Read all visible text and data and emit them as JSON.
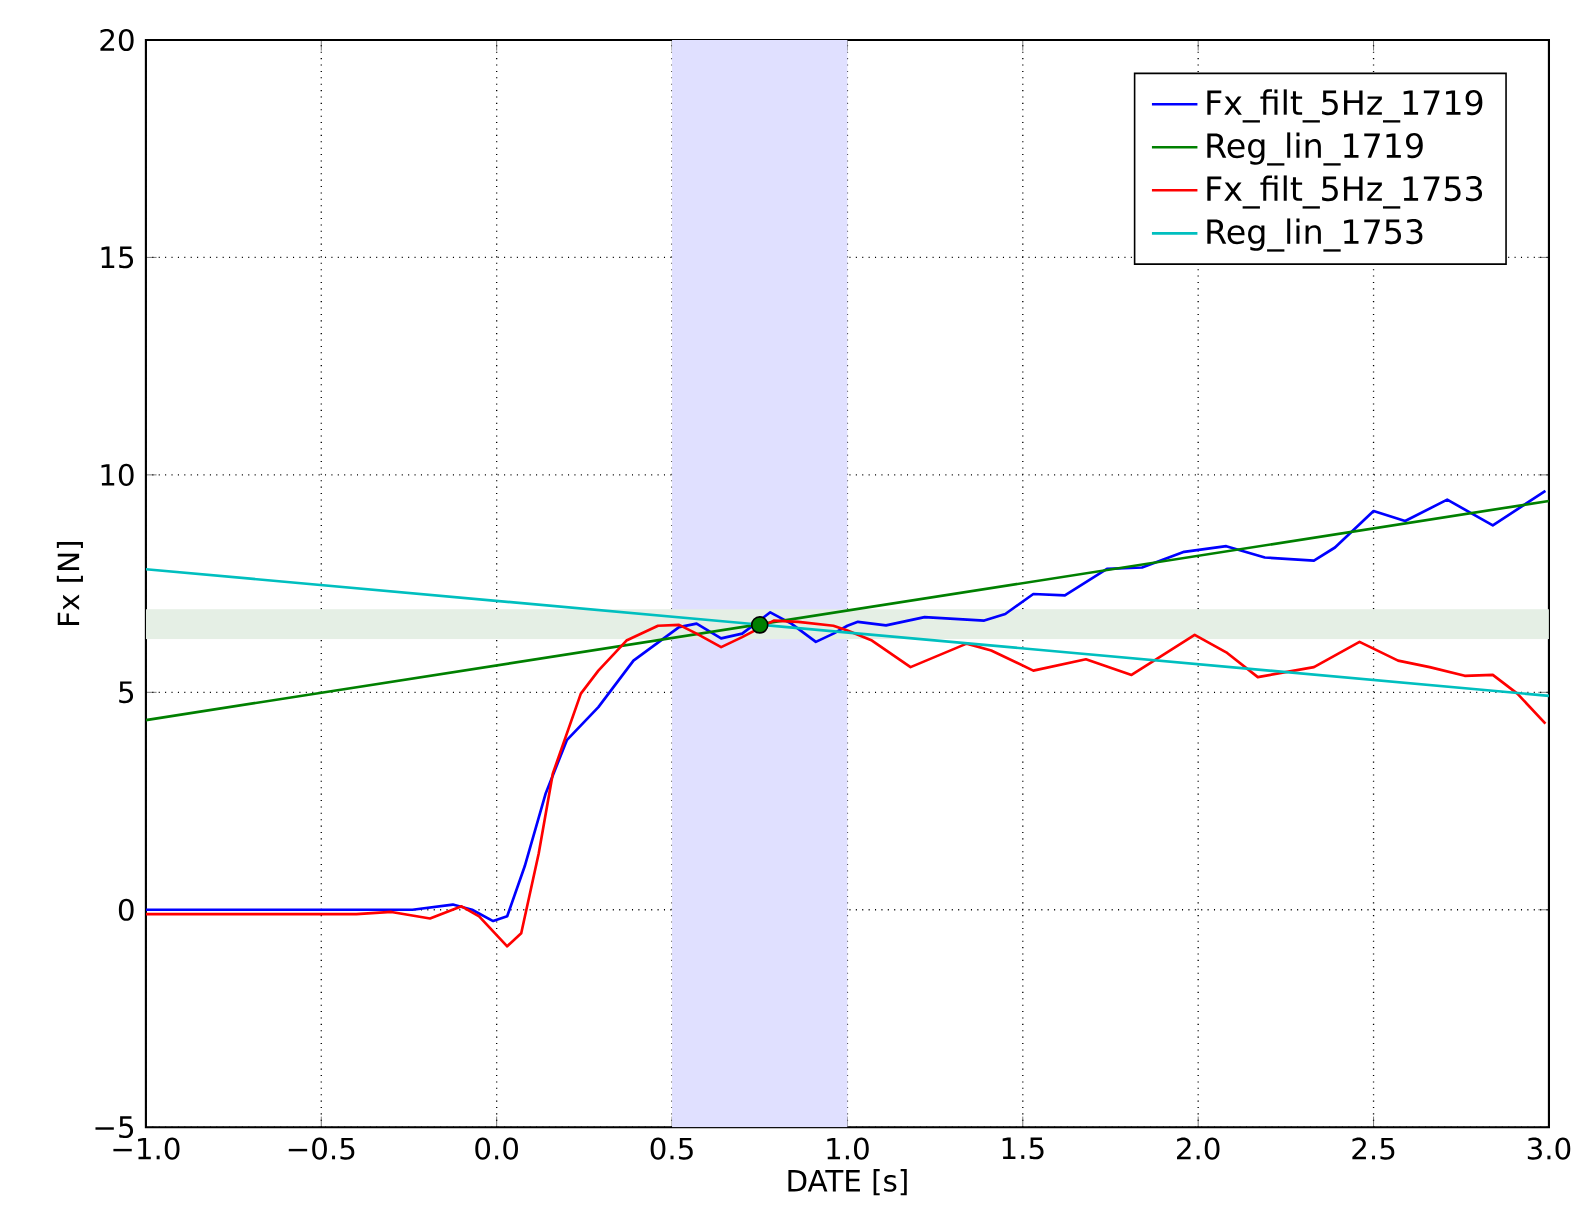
{
  "chart_data": {
    "type": "line",
    "xlabel": "DATE [s]",
    "ylabel": "Fx [N]",
    "xlim": [
      -1.0,
      3.0
    ],
    "ylim": [
      -5,
      20
    ],
    "xticks": [
      {
        "value": -1.0,
        "label": "−1.0"
      },
      {
        "value": -0.5,
        "label": "−0.5"
      },
      {
        "value": 0.0,
        "label": "0.0"
      },
      {
        "value": 0.5,
        "label": "0.5"
      },
      {
        "value": 1.0,
        "label": "1.0"
      },
      {
        "value": 1.5,
        "label": "1.5"
      },
      {
        "value": 2.0,
        "label": "2.0"
      },
      {
        "value": 2.5,
        "label": "2.5"
      },
      {
        "value": 3.0,
        "label": "3.0"
      }
    ],
    "yticks": [
      {
        "value": -5,
        "label": "−5"
      },
      0,
      5,
      10,
      15,
      20
    ],
    "grid": true,
    "legend": "top right",
    "line_style": "solid",
    "bands": [
      {
        "axis": "x",
        "from": 0.5,
        "to": 1.0,
        "color": "#e0e0ff"
      },
      {
        "axis": "y",
        "from": 6.22,
        "to": 6.91,
        "color": "#e5efe5"
      }
    ],
    "series": [
      {
        "name": "Fx_filt_5Hz_1719",
        "color": "#0000ff",
        "marker": "none",
        "x": [
          -1.0,
          -0.24,
          -0.125,
          -0.07,
          -0.01,
          0.03,
          0.08,
          0.14,
          0.2,
          0.29,
          0.39,
          0.52,
          0.57,
          0.64,
          0.7,
          0.78,
          0.84,
          0.91,
          0.96,
          1.0,
          1.03,
          1.11,
          1.22,
          1.39,
          1.45,
          1.53,
          1.62,
          1.74,
          1.84,
          1.96,
          2.08,
          2.19,
          2.33,
          2.39,
          2.5,
          2.59,
          2.71,
          2.84,
          2.99
        ],
        "values": [
          0.0,
          0.0,
          0.12,
          0.0,
          -0.26,
          -0.15,
          1.0,
          2.68,
          3.9,
          4.66,
          5.73,
          6.5,
          6.58,
          6.24,
          6.35,
          6.84,
          6.58,
          6.16,
          6.35,
          6.53,
          6.62,
          6.54,
          6.73,
          6.65,
          6.8,
          7.26,
          7.23,
          7.84,
          7.87,
          8.23,
          8.36,
          8.1,
          8.03,
          8.33,
          9.17,
          8.94,
          9.43,
          8.84,
          9.63
        ]
      },
      {
        "name": "Reg_lin_1719",
        "color": "#008000",
        "marker": "none",
        "x": [
          -1.0,
          3.0
        ],
        "values": [
          4.36,
          9.4
        ]
      },
      {
        "name": "Fx_filt_5Hz_1753",
        "color": "#ff0000",
        "marker": "none",
        "x": [
          -1.0,
          -0.4,
          -0.3,
          -0.19,
          -0.1,
          -0.05,
          0.03,
          0.07,
          0.12,
          0.16,
          0.24,
          0.29,
          0.37,
          0.46,
          0.52,
          0.57,
          0.64,
          0.7,
          0.79,
          0.86,
          0.96,
          1.0,
          1.07,
          1.18,
          1.34,
          1.41,
          1.53,
          1.68,
          1.81,
          1.89,
          1.99,
          2.08,
          2.17,
          2.33,
          2.46,
          2.57,
          2.66,
          2.76,
          2.84,
          2.91,
          2.99
        ],
        "values": [
          -0.1,
          -0.1,
          -0.05,
          -0.2,
          0.08,
          -0.15,
          -0.84,
          -0.54,
          1.3,
          3.13,
          4.97,
          5.5,
          6.19,
          6.53,
          6.55,
          6.35,
          6.04,
          6.27,
          6.65,
          6.62,
          6.53,
          6.42,
          6.19,
          5.58,
          6.12,
          5.96,
          5.5,
          5.76,
          5.4,
          5.81,
          6.32,
          5.92,
          5.35,
          5.58,
          6.16,
          5.73,
          5.58,
          5.38,
          5.4,
          4.97,
          4.28
        ]
      },
      {
        "name": "Reg_lin_1753",
        "color": "#00bfbf",
        "marker": "none",
        "x": [
          -1.0,
          3.0
        ],
        "values": [
          7.83,
          4.92
        ]
      },
      {
        "color": "#008000",
        "type": "scatter",
        "marker": "circle",
        "x": [
          0.75
        ],
        "values": [
          6.55
        ]
      }
    ]
  }
}
